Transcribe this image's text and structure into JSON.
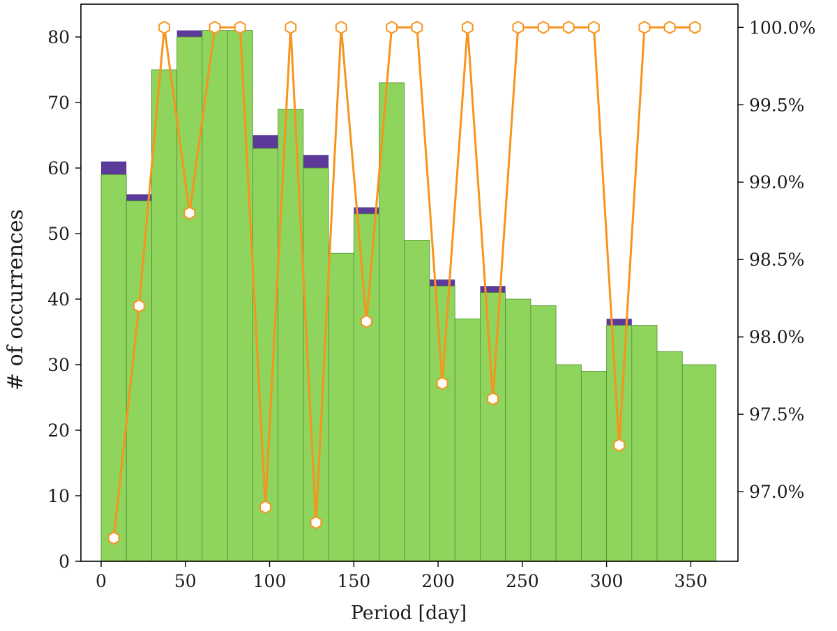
{
  "chart_data": {
    "type": "bar",
    "xlabel": "Period [day]",
    "ylabel": "# of occurrences",
    "xlim": [
      -12,
      378
    ],
    "ylim": [
      0,
      85
    ],
    "y2lim": [
      96.55,
      100.15
    ],
    "xticks": [
      0,
      50,
      100,
      150,
      200,
      250,
      300,
      350
    ],
    "yticks": [
      0,
      10,
      20,
      30,
      40,
      50,
      60,
      70,
      80
    ],
    "y2ticks": [
      97.0,
      97.5,
      98.0,
      98.5,
      99.0,
      99.5,
      100.0
    ],
    "y2_tick_suffix": "%",
    "bin_edges": [
      0,
      15,
      30,
      45,
      60,
      75,
      90,
      105,
      120,
      135,
      150,
      165,
      180,
      195,
      210,
      225,
      240,
      255,
      270,
      285,
      300,
      315,
      330,
      345,
      365
    ],
    "series": [
      {
        "kind": "bar",
        "color": "#8fd45c",
        "values": [
          59,
          55,
          75,
          80,
          81,
          81,
          63,
          69,
          60,
          47,
          53,
          73,
          49,
          42,
          37,
          41,
          40,
          39,
          30,
          29,
          36,
          36,
          32,
          30
        ]
      },
      {
        "kind": "bar-top",
        "color": "#5b3a99",
        "values": [
          61,
          56,
          75,
          81,
          81,
          81,
          65,
          69,
          62,
          47,
          54,
          73,
          49,
          43,
          37,
          42,
          40,
          39,
          30,
          29,
          37,
          36,
          32,
          30
        ]
      },
      {
        "kind": "line",
        "axis": "right",
        "color": "#f7941d",
        "marker": "hexagon",
        "x": [
          7.5,
          22.5,
          37.5,
          52.5,
          67.5,
          82.5,
          97.5,
          112.5,
          127.5,
          142.5,
          157.5,
          172.5,
          187.5,
          202.5,
          217.5,
          232.5,
          247.5,
          262.5,
          277.5,
          292.5,
          307.5,
          322.5,
          337.5,
          352.5
        ],
        "values": [
          96.7,
          98.2,
          100.0,
          98.8,
          100.0,
          100.0,
          96.9,
          100.0,
          96.8,
          100.0,
          98.1,
          100.0,
          100.0,
          97.7,
          100.0,
          97.6,
          100.0,
          100.0,
          100.0,
          100.0,
          97.3,
          100.0,
          100.0,
          100.0
        ]
      }
    ]
  }
}
